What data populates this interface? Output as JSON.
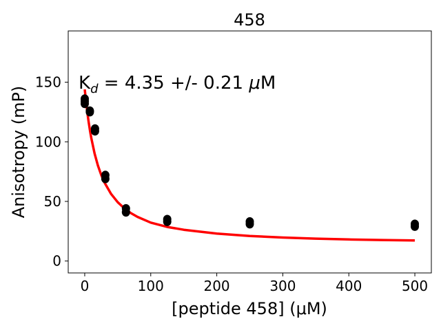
{
  "chart_data": {
    "type": "scatter",
    "title": "458",
    "xlabel": "[peptide 458] (μM)",
    "ylabel": "Anisotropy (mP)",
    "xlim": [
      -25,
      525
    ],
    "ylim": [
      -10,
      193
    ],
    "x_ticks": [
      0,
      100,
      200,
      300,
      400,
      500
    ],
    "y_ticks": [
      0,
      50,
      100,
      150
    ],
    "grid": false,
    "annotation": {
      "prefix": "K",
      "subscript": "d",
      "text": " = 4.35 +/- 0.21 ",
      "unit_symbol": "μ",
      "unit": "M"
    },
    "points": {
      "name": "",
      "color": "#000000",
      "x": [
        0,
        0,
        0,
        7.8,
        7.8,
        15.6,
        15.6,
        31.25,
        31.25,
        62.5,
        62.5,
        125,
        125,
        250,
        250,
        500,
        500
      ],
      "y": [
        136,
        134,
        132,
        126,
        125,
        111,
        109,
        72,
        69,
        44,
        41,
        35,
        33,
        33,
        31,
        31,
        29
      ]
    },
    "fit": {
      "name": "",
      "color": "#ff0000",
      "x": [
        0,
        2,
        4,
        6,
        8,
        10,
        15,
        20,
        25,
        30,
        40,
        50,
        60,
        70,
        80,
        100,
        125,
        150,
        200,
        250,
        300,
        350,
        400,
        450,
        500
      ],
      "y": [
        144.0,
        133.5,
        124.4,
        116.4,
        109.4,
        103.1,
        90.1,
        80.1,
        72.2,
        65.8,
        56.2,
        49.3,
        44.2,
        40.2,
        37.0,
        32.2,
        28.6,
        26.2,
        23.0,
        21.0,
        19.7,
        18.8,
        18.1,
        17.6,
        17.2
      ]
    }
  }
}
